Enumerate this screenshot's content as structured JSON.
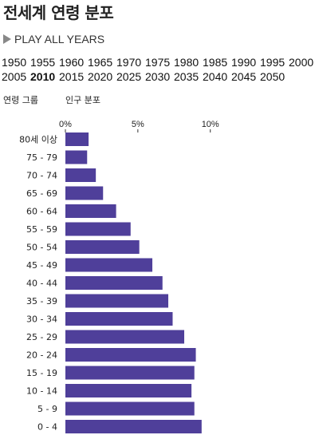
{
  "title": "전세계 연령 분포",
  "play_label": "PLAY ALL YEARS",
  "years": [
    "1950",
    "1955",
    "1960",
    "1965",
    "1970",
    "1975",
    "1980",
    "1985",
    "1990",
    "1995",
    "2000",
    "2005",
    "2010",
    "2015",
    "2020",
    "2025",
    "2030",
    "2035",
    "2040",
    "2045",
    "2050"
  ],
  "selected_year": "2010",
  "headers": {
    "age_group": "연령 그룹",
    "distribution": "인구 분포"
  },
  "colors": {
    "bar": "#4f3f9a",
    "play_icon": "#888888"
  },
  "chart_data": {
    "type": "bar",
    "orientation": "horizontal",
    "categories": [
      "80세 이상",
      "75 - 79",
      "70 - 74",
      "65 - 69",
      "60 - 64",
      "55 - 59",
      "50 - 54",
      "45 - 49",
      "40 - 44",
      "35 - 39",
      "30 - 34",
      "25 - 29",
      "20 - 24",
      "15 - 19",
      "10 - 14",
      "5 - 9",
      "0 - 4"
    ],
    "values": [
      1.6,
      1.5,
      2.1,
      2.6,
      3.5,
      4.5,
      5.1,
      6.0,
      6.7,
      7.1,
      7.4,
      8.2,
      9.0,
      8.9,
      8.7,
      8.9,
      9.4
    ],
    "xticks": [
      "0%",
      "5%",
      "10%"
    ],
    "xtick_values": [
      0,
      5,
      10
    ],
    "xlim": [
      0,
      17.5
    ]
  }
}
